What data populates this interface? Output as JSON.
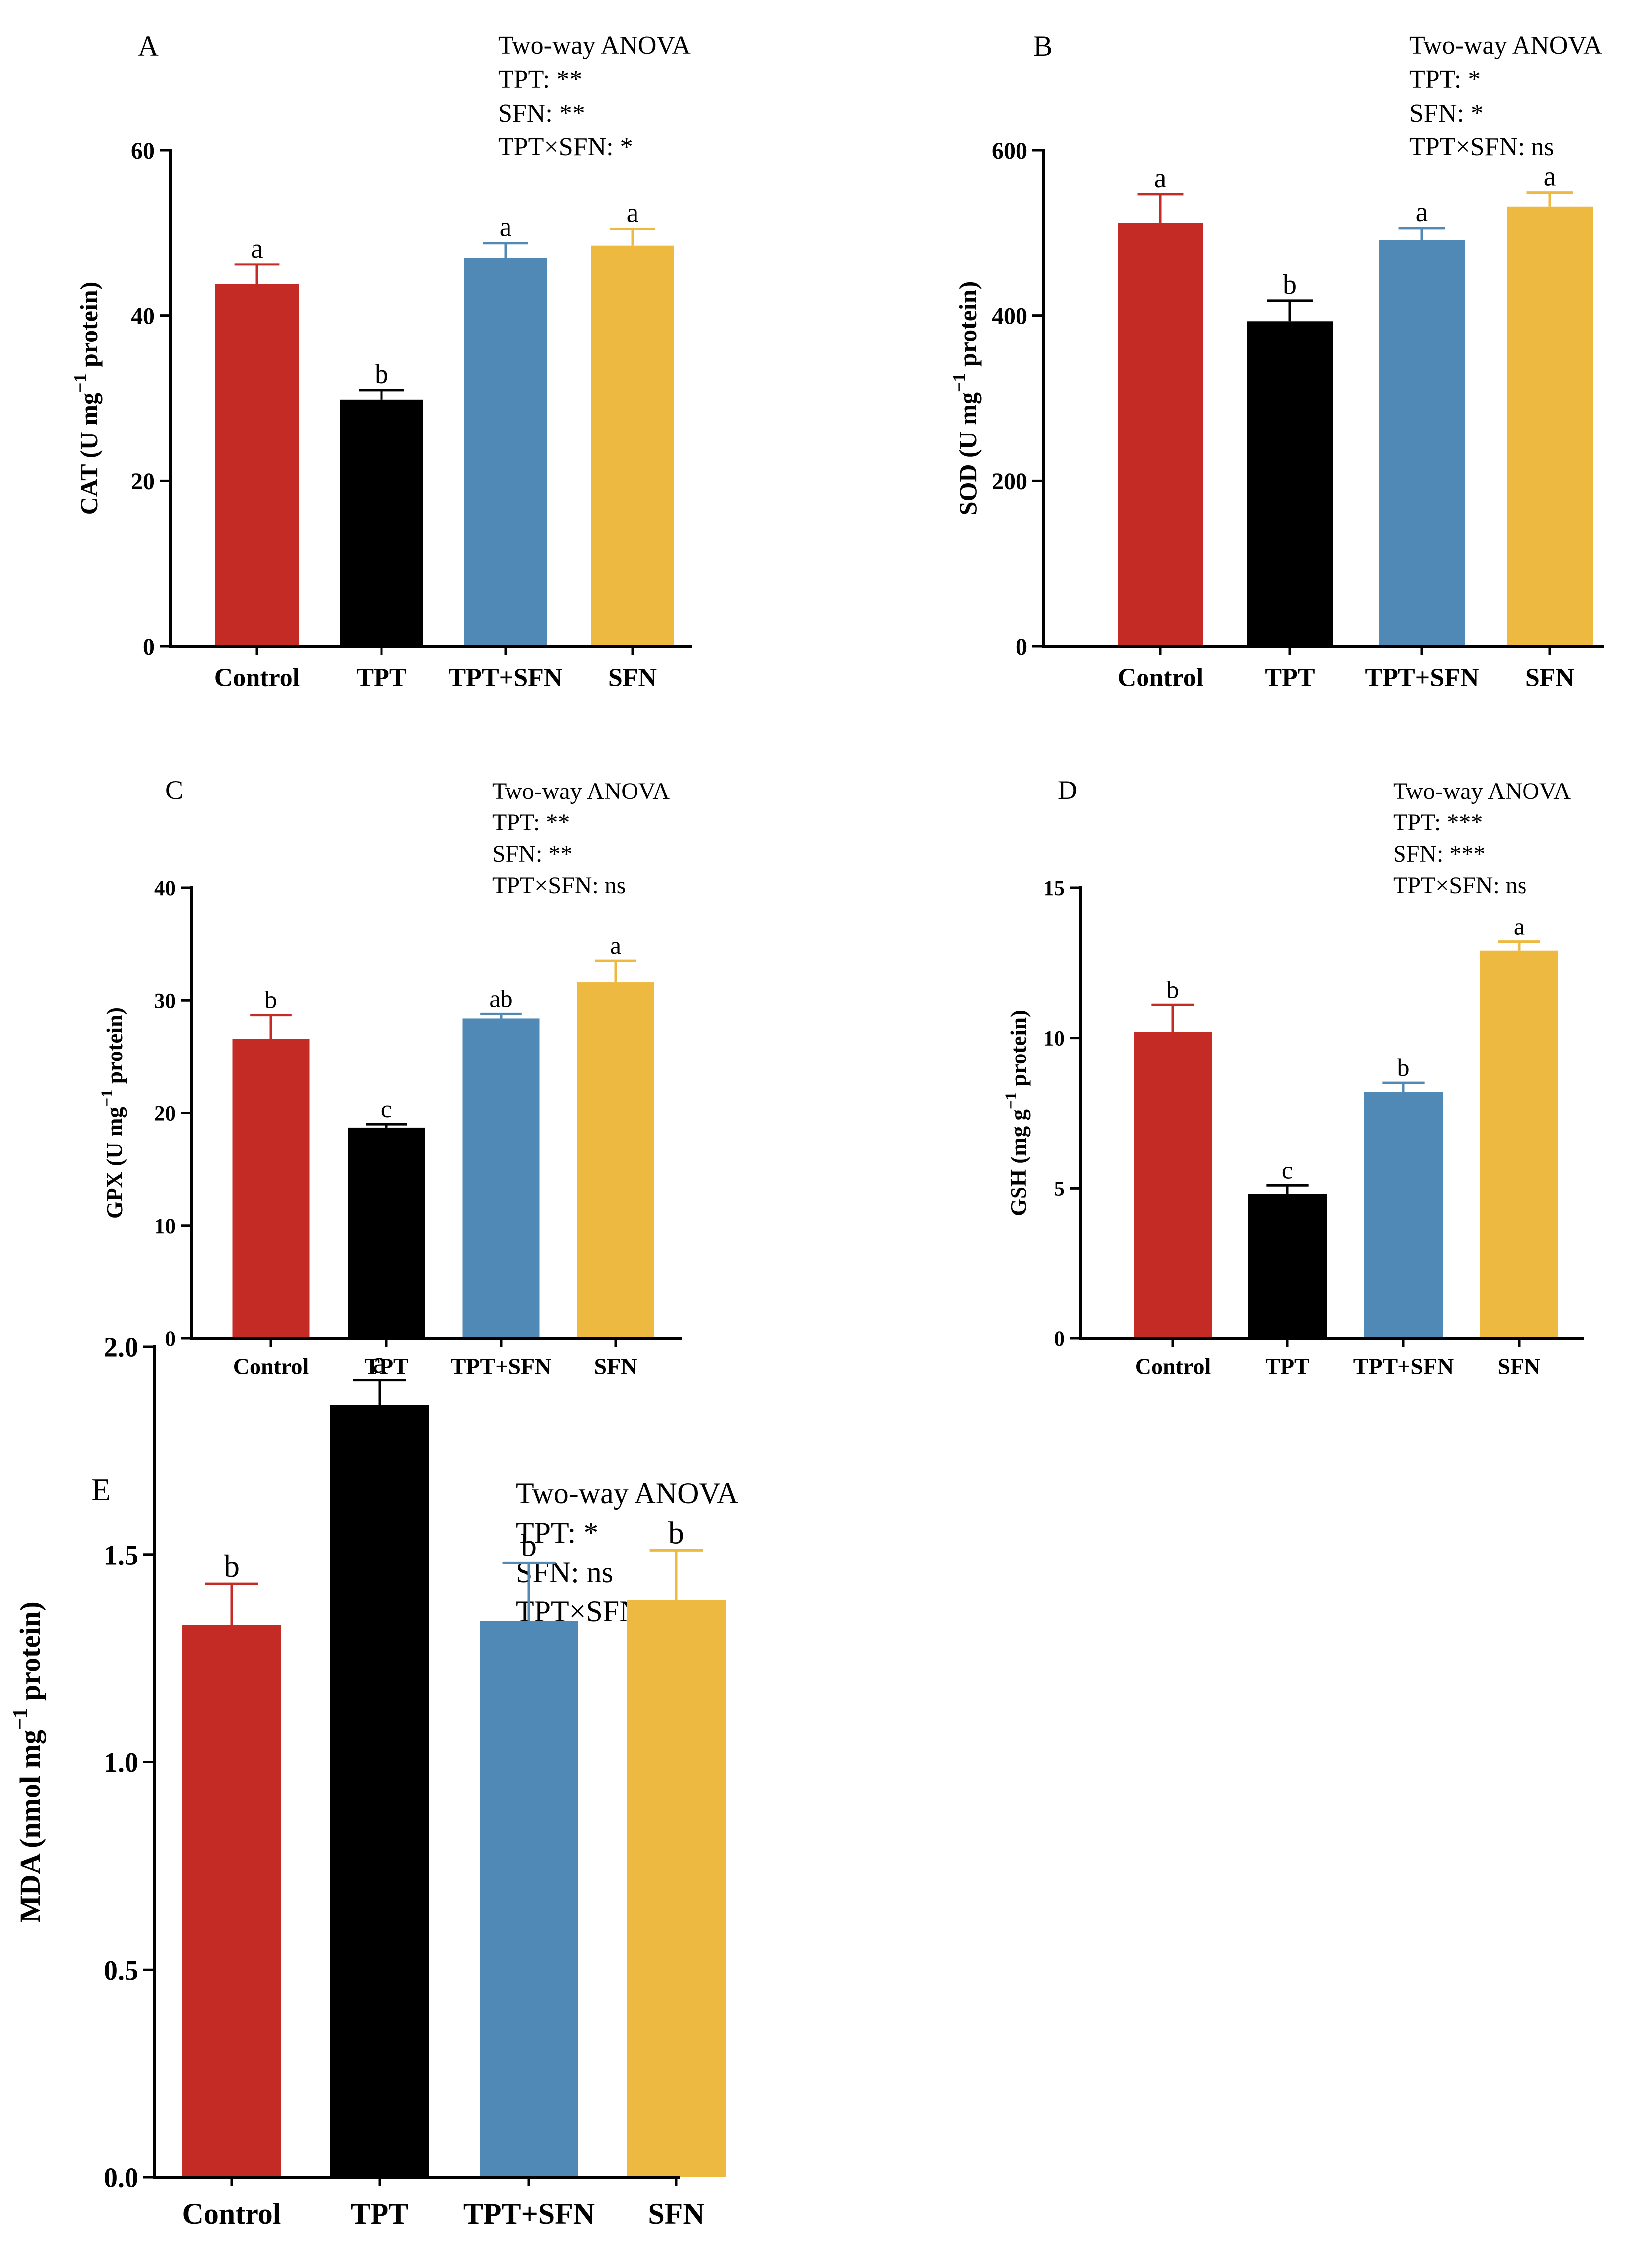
{
  "colors": {
    "Control": "#C42B25",
    "TPT": "#000000",
    "TPT+SFN": "#5089B5",
    "SFN": "#EEB940"
  },
  "chart_data": [
    {
      "panel": "A",
      "type": "bar",
      "categories": [
        "Control",
        "TPT",
        "TPT+SFN",
        "SFN"
      ],
      "values": [
        43.8,
        29.8,
        47.0,
        48.5
      ],
      "errors": [
        2.4,
        1.2,
        1.8,
        2.0
      ],
      "letters": [
        "a",
        "b",
        "a",
        "a"
      ],
      "ylabel": {
        "main": "CAT (U mg",
        "sup": "−1",
        "tail": " protein)"
      },
      "ylim": [
        0,
        60
      ],
      "yticks": [
        0,
        20,
        40,
        60
      ],
      "anova": [
        "Two-way ANOVA",
        "TPT: **",
        "SFN: **",
        "TPT×SFN: *"
      ]
    },
    {
      "panel": "B",
      "type": "bar",
      "categories": [
        "Control",
        "TPT",
        "TPT+SFN",
        "SFN"
      ],
      "values": [
        512,
        393,
        492,
        532
      ],
      "errors": [
        35,
        25,
        14,
        17
      ],
      "letters": [
        "a",
        "b",
        "a",
        "a"
      ],
      "ylabel": {
        "main": "SOD (U mg",
        "sup": "−1",
        "tail": " protein)"
      },
      "ylim": [
        0,
        600
      ],
      "yticks": [
        0,
        200,
        400,
        600
      ],
      "anova": [
        "Two-way ANOVA",
        "TPT: *",
        "SFN: *",
        "TPT×SFN: ns"
      ]
    },
    {
      "panel": "C",
      "type": "bar",
      "categories": [
        "Control",
        "TPT",
        "TPT+SFN",
        "SFN"
      ],
      "values": [
        26.6,
        18.7,
        28.4,
        31.6
      ],
      "errors": [
        2.1,
        0.3,
        0.4,
        1.9
      ],
      "letters": [
        "b",
        "c",
        "ab",
        "a"
      ],
      "ylabel": {
        "main": "GPX (U mg",
        "sup": "−1",
        "tail": " protein)"
      },
      "ylim": [
        0,
        40
      ],
      "yticks": [
        0,
        10,
        20,
        30,
        40
      ],
      "anova": [
        "Two-way ANOVA",
        "TPT: **",
        "SFN: **",
        "TPT×SFN: ns"
      ]
    },
    {
      "panel": "D",
      "type": "bar",
      "categories": [
        "Control",
        "TPT",
        "TPT+SFN",
        "SFN"
      ],
      "values": [
        10.2,
        4.8,
        8.2,
        12.9
      ],
      "errors": [
        0.9,
        0.3,
        0.3,
        0.3
      ],
      "letters": [
        "b",
        "c",
        "b",
        "a"
      ],
      "ylabel": {
        "main": "GSH (mg g",
        "sup": "−1",
        "tail": " protein)"
      },
      "ylim": [
        0,
        15
      ],
      "yticks": [
        0,
        5,
        10,
        15
      ],
      "anova": [
        "Two-way ANOVA",
        "TPT: ***",
        "SFN: ***",
        "TPT×SFN: ns"
      ]
    },
    {
      "panel": "E",
      "type": "bar",
      "categories": [
        "Control",
        "TPT",
        "TPT+SFN",
        "SFN"
      ],
      "values": [
        1.33,
        1.86,
        1.34,
        1.39
      ],
      "errors": [
        0.1,
        0.06,
        0.14,
        0.12
      ],
      "letters": [
        "b",
        "a",
        "b",
        "b"
      ],
      "ylabel": {
        "main": "MDA (nmol mg",
        "sup": "−1",
        "tail": " protein)"
      },
      "ylim": [
        0,
        2.0
      ],
      "yticks": [
        "0.0",
        "0.5",
        "1.0",
        "1.5",
        "2.0"
      ],
      "anova": [
        "Two-way ANOVA",
        "TPT: *",
        "SFN: ns",
        "TPT×SFN: ns"
      ]
    }
  ]
}
